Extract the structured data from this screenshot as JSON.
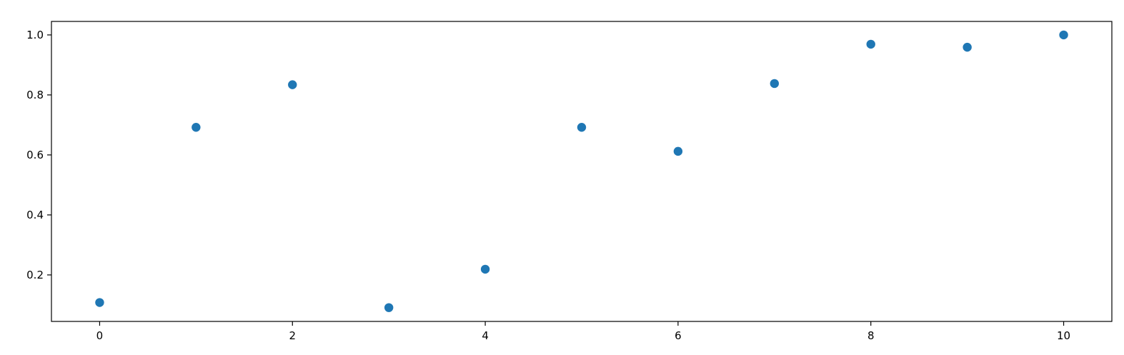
{
  "chart_data": {
    "type": "scatter",
    "title": "",
    "xlabel": "",
    "ylabel": "",
    "xlim": [
      -0.5,
      10.5
    ],
    "ylim": [
      0.045,
      1.045
    ],
    "x_ticks": [
      0,
      2,
      4,
      6,
      8,
      10
    ],
    "x_tick_labels": [
      "0",
      "2",
      "4",
      "6",
      "8",
      "10"
    ],
    "y_ticks": [
      0.2,
      0.4,
      0.6,
      0.8,
      1.0
    ],
    "y_tick_labels": [
      "0.2",
      "0.4",
      "0.6",
      "0.8",
      "1.0"
    ],
    "grid": false,
    "legend": "none",
    "marker_color": "#1f77b4",
    "series": [
      {
        "x": [
          0,
          1,
          2,
          3,
          4,
          5,
          6,
          7,
          8,
          9,
          10
        ],
        "y": [
          0.108,
          0.692,
          0.834,
          0.091,
          0.219,
          0.692,
          0.612,
          0.838,
          0.969,
          0.959,
          1.0
        ]
      }
    ]
  }
}
